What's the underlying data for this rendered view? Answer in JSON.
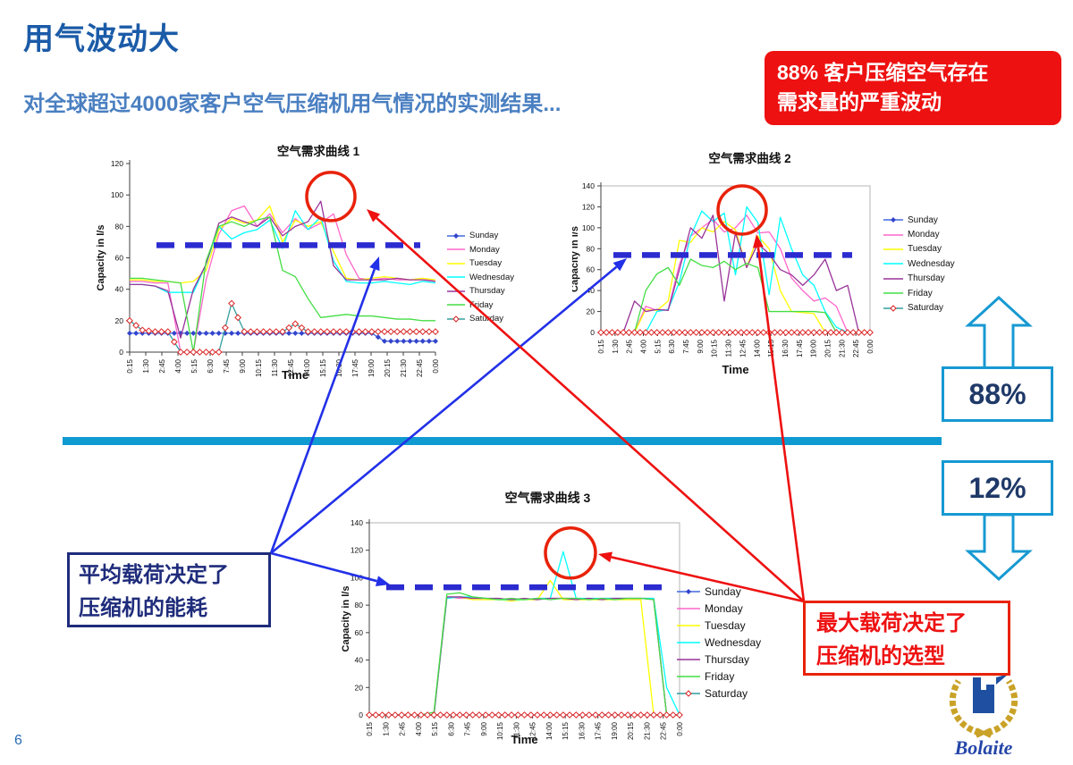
{
  "slide": {
    "title": "用气波动大",
    "subtitle": "对全球超过4000家客户空气压缩机用气情况的实测结果...",
    "top_callout": {
      "line1": "88% 客户压缩空气存在",
      "line2": "需求量的严重波动"
    },
    "percent_boxes": {
      "upper": "88%",
      "lower": "12%"
    },
    "left_callout": {
      "line1": "平均载荷决定了",
      "line2": "压缩机的能耗"
    },
    "right_callout": {
      "line1": "最大载荷决定了",
      "line2": "压缩机的选型"
    },
    "page_number": "6",
    "logo_text": "Bolaite",
    "colors": {
      "title_blue": "#1B5BA8",
      "subtitle_blue": "#4A7FC1",
      "red": "#EE1111",
      "divider_cyan": "#0F9AD2",
      "box_cyan": "#1699D2",
      "navy": "#1F2C7B",
      "dash_blue": "#2B2BD0",
      "arrow_blue": "#2230E8",
      "circle_red": "#E8220A"
    }
  },
  "chart_data": [
    {
      "type": "line",
      "title": "空气需求曲线 1",
      "xlabel": "Time",
      "ylabel": "Capacity in l/s",
      "ylim": [
        0,
        120
      ],
      "yticks": [
        0,
        20,
        40,
        60,
        80,
        100,
        120
      ],
      "x_ticklabels": [
        "0:15",
        "1:30",
        "2:45",
        "4:00",
        "5:15",
        "6:30",
        "7:45",
        "9:00",
        "10:15",
        "11:30",
        "12:45",
        "14:00",
        "15:15",
        "16:30",
        "17:45",
        "19:00",
        "20:15",
        "21:30",
        "22:45",
        "0:00"
      ],
      "average_line": 68,
      "peak_highlight": {
        "x_index": 15.79,
        "y_value": 99,
        "r": 27
      },
      "series": [
        {
          "name": "Sunday",
          "color": "#4169E1",
          "marker": "diamond-filled",
          "marker_color": "#3344CC",
          "values": [
            12,
            12,
            12,
            12,
            12,
            12,
            12,
            12,
            12,
            12,
            12,
            12,
            12,
            12,
            12,
            12,
            12,
            12,
            12,
            12,
            7,
            7,
            7,
            7,
            7
          ]
        },
        {
          "name": "Monday",
          "color": "#FF66CC",
          "values": [
            45,
            45,
            44,
            44,
            0,
            0,
            46,
            75,
            90,
            93,
            80,
            88,
            76,
            85,
            78,
            82,
            88,
            62,
            47,
            46,
            47,
            46,
            46,
            47,
            45
          ]
        },
        {
          "name": "Tuesday",
          "color": "#FFFF00",
          "values": [
            46,
            46,
            45,
            45,
            44,
            45,
            52,
            78,
            85,
            82,
            84,
            93,
            70,
            84,
            80,
            83,
            64,
            47,
            46,
            47,
            48,
            47,
            46,
            47,
            46
          ]
        },
        {
          "name": "Wednesday",
          "color": "#00FFFF",
          "values": [
            43,
            43,
            42,
            38,
            38,
            38,
            56,
            80,
            72,
            76,
            78,
            84,
            66,
            90,
            78,
            86,
            58,
            45,
            44,
            44,
            45,
            44,
            43,
            45,
            44
          ]
        },
        {
          "name": "Thursday",
          "color": "#993399",
          "values": [
            43,
            43,
            42,
            39,
            9,
            40,
            56,
            82,
            86,
            83,
            80,
            86,
            74,
            80,
            83,
            96,
            55,
            46,
            46,
            46,
            46,
            47,
            46,
            46,
            45
          ]
        },
        {
          "name": "Friday",
          "color": "#44DD44",
          "values": [
            47,
            47,
            46,
            45,
            44,
            0,
            58,
            80,
            83,
            80,
            84,
            86,
            52,
            48,
            34,
            22,
            23,
            24,
            23,
            23,
            22,
            21,
            21,
            20,
            20
          ]
        },
        {
          "name": "Saturday",
          "color": "#339E9E",
          "marker": "diamond-open",
          "marker_color": "#DD2222",
          "values": [
            20,
            14,
            13,
            13,
            0,
            0,
            0,
            0,
            31,
            13,
            13,
            13,
            13,
            18,
            13,
            13,
            13,
            13,
            13,
            13,
            13,
            13,
            13,
            13,
            13
          ]
        }
      ]
    },
    {
      "type": "line",
      "title": "空气需求曲线 2",
      "xlabel": "Time",
      "ylabel": "Capacity in l/s",
      "ylim": [
        0,
        140
      ],
      "yticks": [
        0,
        20,
        40,
        60,
        80,
        100,
        120,
        140
      ],
      "x_ticklabels": [
        "0:15",
        "1:30",
        "2:45",
        "4:00",
        "5:15",
        "6:30",
        "7:45",
        "9:00",
        "10:15",
        "11:30",
        "12:45",
        "14:00",
        "15:15",
        "16:30",
        "17:45",
        "19:00",
        "20:15",
        "21:30",
        "22:45",
        "0:00"
      ],
      "average_line": 74,
      "peak_highlight": {
        "x_index": 12.6,
        "y_value": 117,
        "r": 27
      },
      "series": [
        {
          "name": "Sunday",
          "color": "#4169E1",
          "marker": "diamond-filled",
          "marker_color": "#3344CC",
          "values": [
            0,
            0,
            0,
            0,
            0,
            0,
            0,
            0,
            0,
            0,
            0,
            0,
            0,
            0,
            0,
            0,
            0,
            0,
            0,
            0,
            0,
            0,
            0,
            0,
            0
          ]
        },
        {
          "name": "Monday",
          "color": "#FF66CC",
          "values": [
            0,
            0,
            0,
            0,
            25,
            21,
            22,
            65,
            92,
            100,
            108,
            96,
            100,
            112,
            95,
            96,
            80,
            52,
            40,
            30,
            33,
            25,
            0,
            0,
            0
          ]
        },
        {
          "name": "Tuesday",
          "color": "#FFFF00",
          "values": [
            0,
            0,
            0,
            0,
            22,
            21,
            30,
            88,
            86,
            100,
            96,
            106,
            98,
            62,
            92,
            80,
            40,
            20,
            19,
            18,
            0,
            0,
            0,
            0,
            0
          ]
        },
        {
          "name": "Wednesday",
          "color": "#00FFFF",
          "values": [
            0,
            0,
            0,
            0,
            0,
            20,
            22,
            48,
            92,
            116,
            106,
            114,
            55,
            120,
            105,
            36,
            110,
            80,
            55,
            45,
            20,
            5,
            0,
            0,
            0
          ]
        },
        {
          "name": "Thursday",
          "color": "#993399",
          "values": [
            0,
            0,
            0,
            30,
            20,
            22,
            21,
            60,
            100,
            90,
            112,
            30,
            95,
            62,
            85,
            75,
            60,
            55,
            45,
            55,
            70,
            40,
            45,
            0,
            0
          ]
        },
        {
          "name": "Friday",
          "color": "#44DD44",
          "values": [
            0,
            0,
            0,
            0,
            40,
            56,
            62,
            45,
            70,
            64,
            62,
            68,
            60,
            66,
            62,
            20,
            20,
            20,
            20,
            20,
            19,
            0,
            0,
            0,
            0
          ]
        },
        {
          "name": "Saturday",
          "color": "#339E9E",
          "marker": "diamond-open",
          "marker_color": "#DD2222",
          "values": [
            0,
            0,
            0,
            0,
            0,
            0,
            0,
            0,
            0,
            0,
            0,
            0,
            0,
            0,
            0,
            0,
            0,
            0,
            0,
            0,
            0,
            0,
            0,
            0,
            0
          ]
        }
      ]
    },
    {
      "type": "line",
      "title": "空气需求曲线 3",
      "xlabel": "Time",
      "ylabel": "Capacity in l/s",
      "ylim": [
        0,
        140
      ],
      "yticks": [
        0,
        20,
        40,
        60,
        80,
        100,
        120,
        140
      ],
      "x_ticklabels": [
        "0:15",
        "1:30",
        "2:45",
        "4:00",
        "5:15",
        "6:30",
        "7:45",
        "9:00",
        "10:15",
        "11:30",
        "12:45",
        "14:00",
        "15:15",
        "16:30",
        "17:45",
        "19:00",
        "20:15",
        "21:30",
        "22:45",
        "0:00"
      ],
      "average_line": 93,
      "peak_highlight": {
        "x_index": 15.56,
        "y_value": 118,
        "r": 28
      },
      "series": [
        {
          "name": "Sunday",
          "color": "#4169E1",
          "marker": "diamond-filled",
          "marker_color": "#3344CC",
          "values": [
            0,
            0,
            0,
            0,
            0,
            0,
            0,
            0,
            0,
            0,
            0,
            0,
            0,
            0,
            0,
            0,
            0,
            0,
            0,
            0,
            0,
            0,
            0,
            0,
            0
          ]
        },
        {
          "name": "Monday",
          "color": "#FF66CC",
          "values": [
            0,
            0,
            0,
            0,
            0,
            0,
            86,
            85,
            85,
            85,
            84,
            85,
            84,
            85,
            85,
            85,
            85,
            84,
            85,
            85,
            84,
            85,
            85,
            0,
            0
          ]
        },
        {
          "name": "Tuesday",
          "color": "#FFFF00",
          "values": [
            0,
            0,
            0,
            0,
            0,
            0,
            85,
            86,
            84,
            84,
            84,
            83,
            84,
            84,
            98,
            84,
            84,
            84,
            84,
            84,
            84,
            84,
            0,
            0,
            0
          ]
        },
        {
          "name": "Wednesday",
          "color": "#00FFFF",
          "values": [
            0,
            0,
            0,
            0,
            0,
            0,
            85,
            86,
            86,
            85,
            84,
            84,
            84,
            85,
            85,
            119,
            85,
            85,
            85,
            85,
            85,
            85,
            85,
            20,
            0
          ]
        },
        {
          "name": "Thursday",
          "color": "#993399",
          "values": [
            0,
            0,
            0,
            0,
            0,
            0,
            86,
            86,
            85,
            85,
            85,
            84,
            85,
            84,
            85,
            85,
            84,
            85,
            84,
            85,
            85,
            85,
            84,
            0,
            0
          ]
        },
        {
          "name": "Friday",
          "color": "#44DD44",
          "values": [
            0,
            0,
            0,
            0,
            0,
            2,
            88,
            89,
            86,
            85,
            84,
            85,
            84,
            85,
            84,
            85,
            85,
            84,
            85,
            84,
            85,
            85,
            84,
            0,
            0
          ]
        },
        {
          "name": "Saturday",
          "color": "#339E9E",
          "marker": "diamond-open",
          "marker_color": "#DD2222",
          "values": [
            0,
            0,
            0,
            0,
            0,
            0,
            0,
            0,
            0,
            0,
            0,
            0,
            0,
            0,
            0,
            0,
            0,
            0,
            0,
            0,
            0,
            0,
            0,
            0,
            0
          ]
        }
      ]
    }
  ]
}
